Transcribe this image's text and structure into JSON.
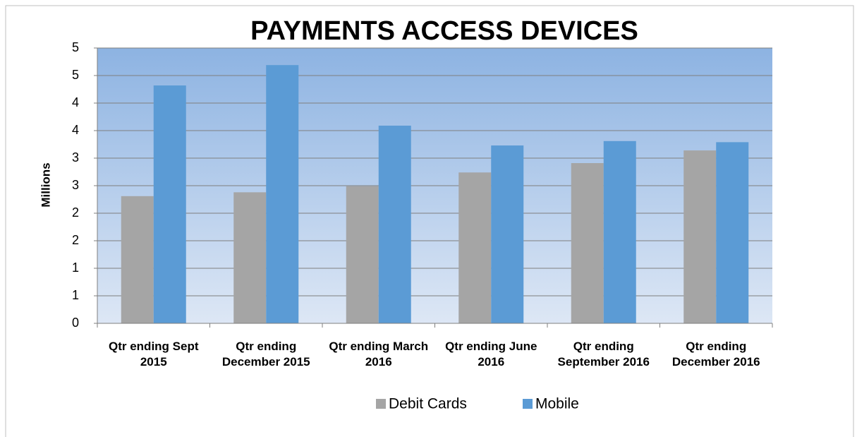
{
  "chart_data": {
    "type": "bar",
    "title": "PAYMENTS ACCESS DEVICES",
    "y_label": "Millions",
    "categories": [
      "Qtr ending Sept 2015",
      "Qtr ending December 2015",
      "Qtr ending March 2016",
      "Qtr ending June 2016",
      "Qtr ending September 2016",
      "Qtr ending December 2016"
    ],
    "series": [
      {
        "name": "Debit Cards",
        "color": "#a5a5a5",
        "values": [
          2.31,
          2.38,
          2.49,
          2.74,
          2.91,
          3.14
        ]
      },
      {
        "name": "Mobile",
        "color": "#5b9bd5",
        "values": [
          4.32,
          4.69,
          3.59,
          3.23,
          3.31,
          3.29
        ]
      }
    ],
    "ylim": [
      0,
      5
    ],
    "yticks": [
      0,
      {
        "value": 0.5,
        "label": "1"
      },
      1,
      {
        "value": 1.5,
        "label": "2"
      },
      2,
      {
        "value": 2.5,
        "label": "3"
      },
      3,
      {
        "value": 3.5,
        "label": "4"
      },
      4,
      {
        "value": 4.5,
        "label": "5"
      },
      5
    ],
    "grid": true,
    "legend": "bottom"
  }
}
